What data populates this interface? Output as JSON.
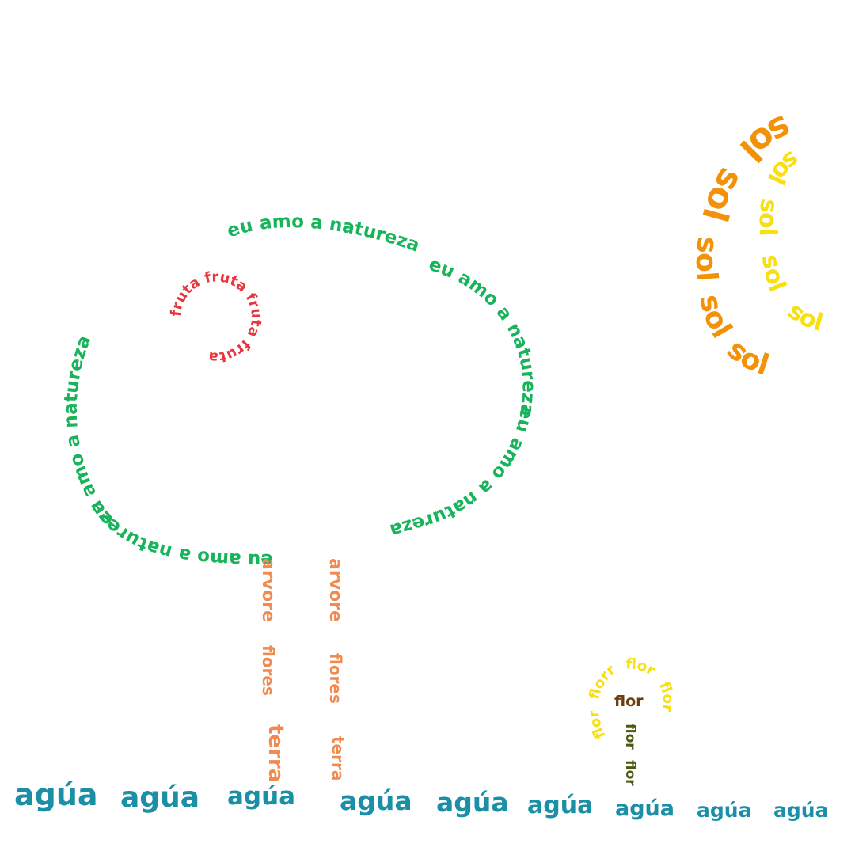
{
  "colors": {
    "background": "#ffffff",
    "tree_canopy": "#18b45b",
    "fruit": "#e8363c",
    "trunk": "#f08a50",
    "water": "#1a8fa5",
    "sun_outer": "#f39208",
    "sun_inner": "#f7df10",
    "flower_petals": "#f7df10",
    "flower_center": "#6b3e12",
    "flower_stem": "#4a5a10"
  },
  "words": {
    "canopy": "eu amo a natureza",
    "fruit": "fruta",
    "tree_1": "arvore",
    "tree_2": "flores",
    "tree_3": "terra",
    "water": "agúa",
    "sun": "sol",
    "flower": "flor",
    "flower_alt": "florr"
  }
}
